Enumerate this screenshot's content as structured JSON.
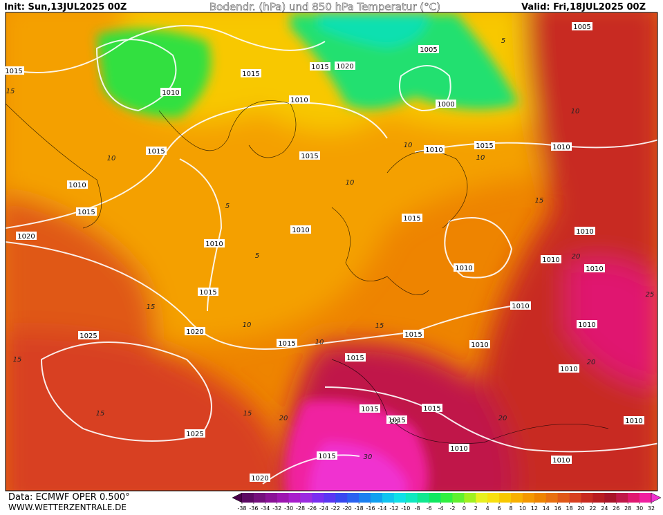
{
  "header": {
    "init": "Init: Sun,13JUL2025 00Z",
    "title": "Bodendr. (hPa) und 850 hPa Temperatur (°C)",
    "valid": "Valid: Fri,18JUL2025 00Z"
  },
  "footer": {
    "source": "Data: ECMWF OPER 0.500°",
    "website": "WWW.WETTERZENTRALE.DE"
  },
  "colorbar": {
    "ticks": [
      -38,
      -36,
      -34,
      -32,
      -30,
      -28,
      -26,
      -24,
      -22,
      -20,
      -18,
      -16,
      -14,
      -12,
      -10,
      -8,
      -6,
      -4,
      -2,
      0,
      2,
      4,
      6,
      8,
      10,
      12,
      14,
      16,
      18,
      20,
      22,
      24,
      26,
      28,
      30,
      32
    ],
    "colors": [
      "#4a004a",
      "#5c0a63",
      "#74107c",
      "#8a1296",
      "#9d16b0",
      "#a81fcc",
      "#9b2ce0",
      "#7a2ef0",
      "#5a36f2",
      "#3848f0",
      "#2a62f0",
      "#1a80f0",
      "#10a0f0",
      "#10c4f0",
      "#10e0e8",
      "#10e8c0",
      "#10e890",
      "#10e860",
      "#30f040",
      "#60f030",
      "#a0f020",
      "#e8f020",
      "#f8e010",
      "#f8c800",
      "#f8b000",
      "#f49800",
      "#ee8400",
      "#e87010",
      "#e05818",
      "#d84020",
      "#c82a20",
      "#b81c20",
      "#a81428",
      "#c01848",
      "#e01870",
      "#f020a0",
      "#f030d0"
    ]
  },
  "isobar_labels": [
    "1005",
    "1005",
    "1015",
    "1015",
    "1015",
    "1020",
    "1010",
    "1010",
    "1000",
    "1010",
    "1015",
    "1010",
    "1015",
    "1015",
    "1010",
    "1015",
    "1015",
    "1020",
    "1010",
    "1010",
    "1010",
    "1010",
    "1010",
    "1010",
    "1015",
    "1010",
    "1010",
    "1020",
    "1015",
    "1015",
    "1010",
    "1025",
    "1015",
    "1010",
    "1015",
    "1015",
    "1015",
    "1010",
    "1025",
    "1010",
    "1015",
    "1010",
    "1020"
  ],
  "isotherm_labels": [
    "15",
    "10",
    "5",
    "15",
    "10",
    "10",
    "15",
    "15",
    "15",
    "20",
    "25",
    "20",
    "20",
    "30",
    "15",
    "10",
    "10",
    "5",
    "10",
    "15",
    "20",
    "25",
    "5",
    "10"
  ]
}
